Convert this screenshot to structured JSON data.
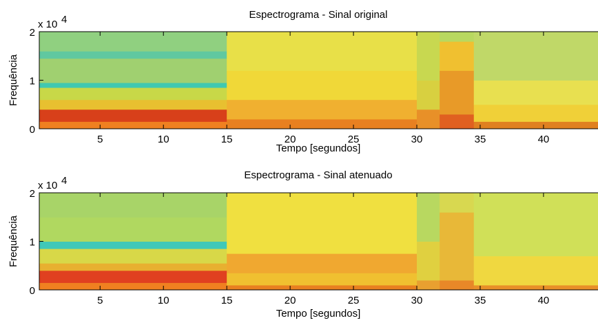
{
  "chart_data": [
    {
      "type": "spectrogram",
      "title": "Espectrograma - Sinal original",
      "xlabel": "Tempo [segundos]",
      "ylabel": "Frequência",
      "y_multiplier": "x 10",
      "y_exponent": "4",
      "xlim": [
        0.2,
        44.3
      ],
      "xticks": [
        5,
        10,
        15,
        20,
        25,
        30,
        35,
        40
      ],
      "ylim": [
        0,
        2
      ],
      "yticks": [
        0,
        1,
        2
      ],
      "cells": [
        {
          "t": [
            0.2,
            15
          ],
          "f": [
            0,
            0.15
          ],
          "color": "#f08020"
        },
        {
          "t": [
            0.2,
            15
          ],
          "f": [
            0.15,
            0.4
          ],
          "color": "#d8401a"
        },
        {
          "t": [
            0.2,
            15
          ],
          "f": [
            0.4,
            0.6
          ],
          "color": "#e8c030"
        },
        {
          "t": [
            0.2,
            15
          ],
          "f": [
            0.6,
            0.85
          ],
          "color": "#c8d848"
        },
        {
          "t": [
            0.2,
            15
          ],
          "f": [
            0.85,
            0.95
          ],
          "color": "#40c8b0"
        },
        {
          "t": [
            0.2,
            15
          ],
          "f": [
            0.95,
            1.45
          ],
          "color": "#a0d070"
        },
        {
          "t": [
            0.2,
            15
          ],
          "f": [
            1.45,
            1.6
          ],
          "color": "#60c8a0"
        },
        {
          "t": [
            0.2,
            15
          ],
          "f": [
            1.6,
            2
          ],
          "color": "#90d080"
        },
        {
          "t": [
            15,
            30
          ],
          "f": [
            0,
            0.2
          ],
          "color": "#e88020"
        },
        {
          "t": [
            15,
            30
          ],
          "f": [
            0.2,
            0.6
          ],
          "color": "#f0b030"
        },
        {
          "t": [
            15,
            30
          ],
          "f": [
            0.6,
            1.2
          ],
          "color": "#f0d838"
        },
        {
          "t": [
            15,
            30
          ],
          "f": [
            1.2,
            2
          ],
          "color": "#e8e048"
        },
        {
          "t": [
            30,
            31.8
          ],
          "f": [
            0,
            0.4
          ],
          "color": "#e89028"
        },
        {
          "t": [
            30,
            31.8
          ],
          "f": [
            0.4,
            1
          ],
          "color": "#d8d040"
        },
        {
          "t": [
            30,
            31.8
          ],
          "f": [
            1,
            2
          ],
          "color": "#c8d850"
        },
        {
          "t": [
            31.8,
            34.5
          ],
          "f": [
            0,
            0.3
          ],
          "color": "#e06020"
        },
        {
          "t": [
            31.8,
            34.5
          ],
          "f": [
            0.3,
            1.2
          ],
          "color": "#e89a28"
        },
        {
          "t": [
            31.8,
            34.5
          ],
          "f": [
            1.2,
            1.8
          ],
          "color": "#f0c030"
        },
        {
          "t": [
            31.8,
            34.5
          ],
          "f": [
            1.8,
            2
          ],
          "color": "#b8d860"
        },
        {
          "t": [
            34.5,
            44.3
          ],
          "f": [
            0,
            0.15
          ],
          "color": "#e08020"
        },
        {
          "t": [
            34.5,
            44.3
          ],
          "f": [
            0.15,
            0.5
          ],
          "color": "#f0d038"
        },
        {
          "t": [
            34.5,
            44.3
          ],
          "f": [
            0.5,
            1
          ],
          "color": "#e8e050"
        },
        {
          "t": [
            34.5,
            44.3
          ],
          "f": [
            1,
            2
          ],
          "color": "#c0d868"
        }
      ]
    },
    {
      "type": "spectrogram",
      "title": "Espectrograma - Sinal atenuado",
      "xlabel": "Tempo [segundos]",
      "ylabel": "Frequência",
      "y_multiplier": "x 10",
      "y_exponent": "4",
      "xlim": [
        0.2,
        44.3
      ],
      "xticks": [
        5,
        10,
        15,
        20,
        25,
        30,
        35,
        40
      ],
      "ylim": [
        0,
        2
      ],
      "yticks": [
        0,
        1,
        2
      ],
      "cells": [
        {
          "t": [
            0.2,
            15
          ],
          "f": [
            0,
            0.15
          ],
          "color": "#f08020"
        },
        {
          "t": [
            0.2,
            15
          ],
          "f": [
            0.15,
            0.4
          ],
          "color": "#e04020"
        },
        {
          "t": [
            0.2,
            15
          ],
          "f": [
            0.4,
            0.55
          ],
          "color": "#e8b030"
        },
        {
          "t": [
            0.2,
            15
          ],
          "f": [
            0.55,
            0.85
          ],
          "color": "#d8d848"
        },
        {
          "t": [
            0.2,
            15
          ],
          "f": [
            0.85,
            1
          ],
          "color": "#40c8b8"
        },
        {
          "t": [
            0.2,
            15
          ],
          "f": [
            1,
            1.5
          ],
          "color": "#b0d860"
        },
        {
          "t": [
            0.2,
            15
          ],
          "f": [
            1.5,
            2
          ],
          "color": "#a8d468"
        },
        {
          "t": [
            15,
            30
          ],
          "f": [
            0,
            0.1
          ],
          "color": "#e88020"
        },
        {
          "t": [
            15,
            30
          ],
          "f": [
            0.1,
            0.35
          ],
          "color": "#f0c030"
        },
        {
          "t": [
            15,
            30
          ],
          "f": [
            0.35,
            0.75
          ],
          "color": "#f0a830"
        },
        {
          "t": [
            15,
            30
          ],
          "f": [
            0.75,
            2
          ],
          "color": "#f0e040"
        },
        {
          "t": [
            30,
            31.8
          ],
          "f": [
            0,
            0.2
          ],
          "color": "#e8a030"
        },
        {
          "t": [
            30,
            31.8
          ],
          "f": [
            0.2,
            1
          ],
          "color": "#e0d040"
        },
        {
          "t": [
            30,
            31.8
          ],
          "f": [
            1,
            2
          ],
          "color": "#b8d860"
        },
        {
          "t": [
            31.8,
            34.5
          ],
          "f": [
            0,
            0.2
          ],
          "color": "#e88828"
        },
        {
          "t": [
            31.8,
            34.5
          ],
          "f": [
            0.2,
            1.6
          ],
          "color": "#e8b838"
        },
        {
          "t": [
            31.8,
            34.5
          ],
          "f": [
            1.6,
            2
          ],
          "color": "#d8d850"
        },
        {
          "t": [
            34.5,
            44.3
          ],
          "f": [
            0,
            0.1
          ],
          "color": "#e89028"
        },
        {
          "t": [
            34.5,
            44.3
          ],
          "f": [
            0.1,
            0.7
          ],
          "color": "#f0d840"
        },
        {
          "t": [
            34.5,
            44.3
          ],
          "f": [
            0.7,
            2
          ],
          "color": "#d0e058"
        }
      ]
    }
  ]
}
